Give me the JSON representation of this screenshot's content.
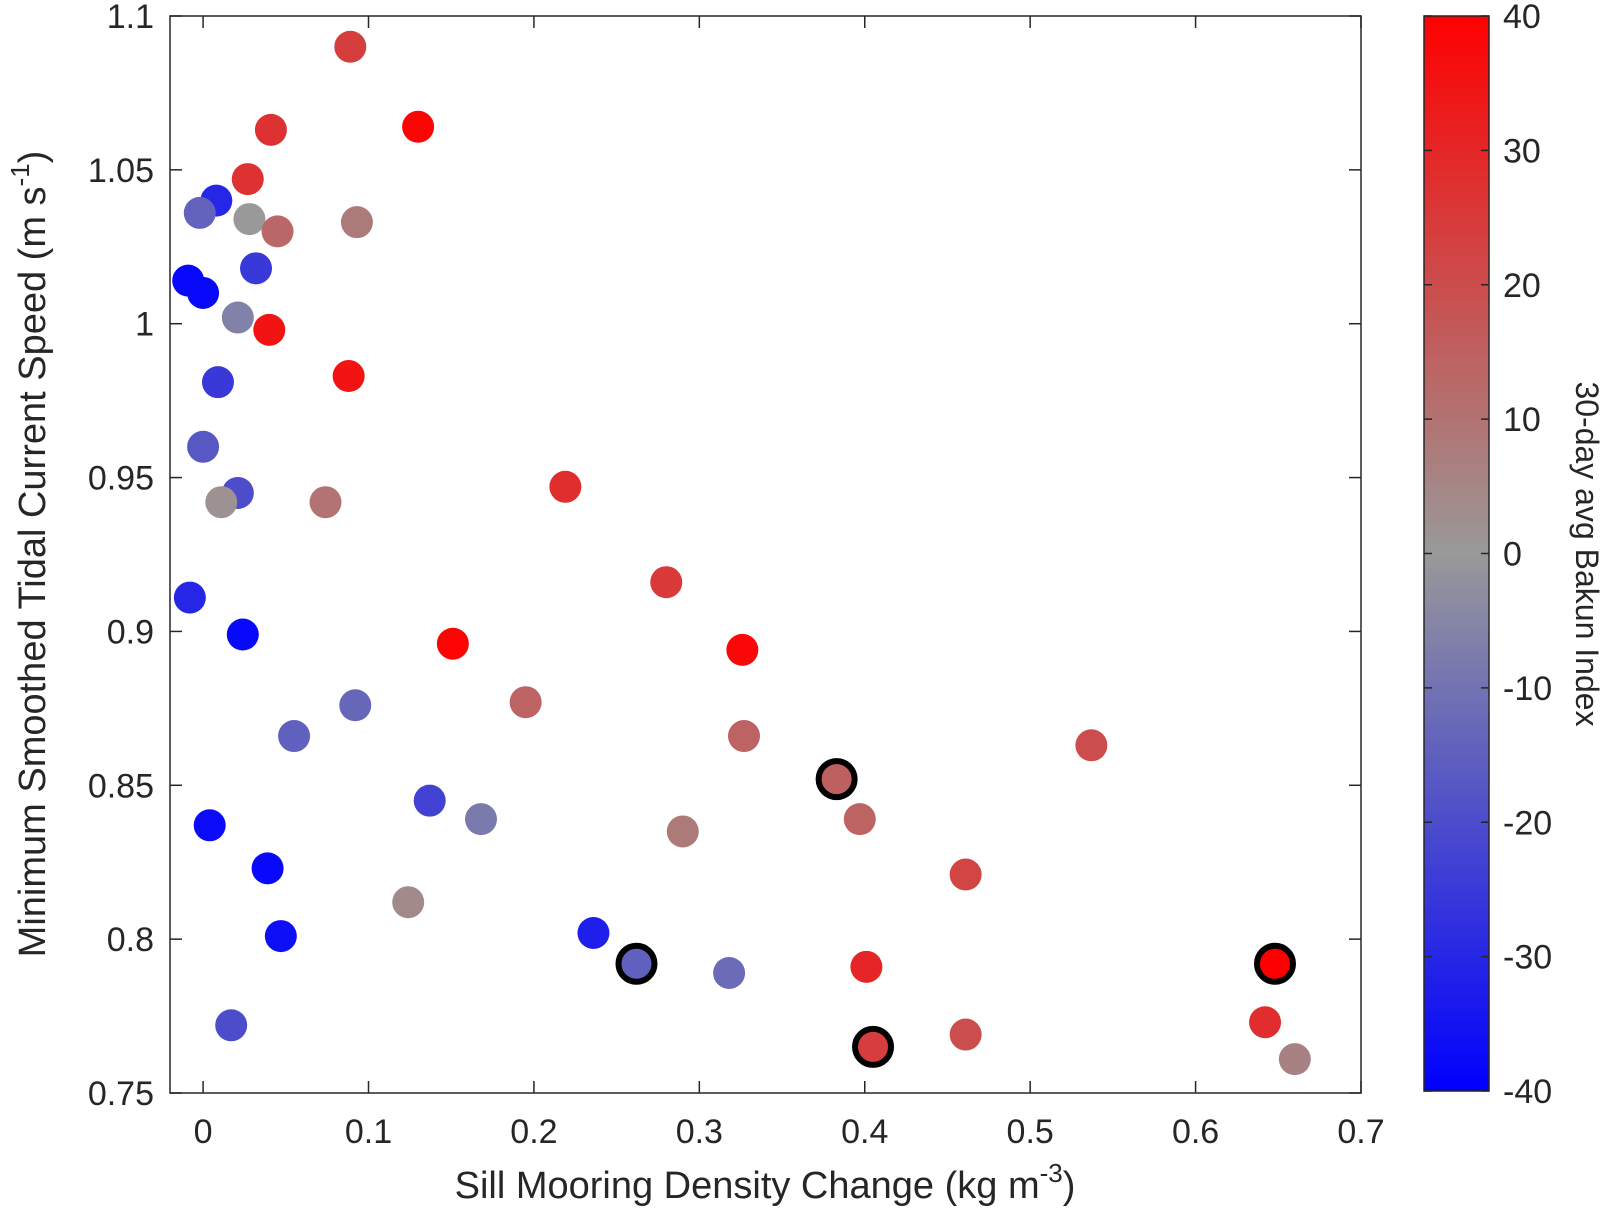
{
  "chart_data": {
    "type": "scatter",
    "title": "",
    "xlabel": "Sill Mooring Density Change (kg m",
    "xlabel_sup": "-3",
    "xlabel_close": ")",
    "ylabel": "Minimum Smoothed Tidal Current Speed (m s",
    "ylabel_sup": "-1",
    "ylabel_close": ")",
    "xlim": [
      -0.02,
      0.7
    ],
    "ylim": [
      0.75,
      1.1
    ],
    "xticks": [
      0,
      0.1,
      0.2,
      0.3,
      0.4,
      0.5,
      0.6,
      0.7
    ],
    "xtick_labels": [
      "0",
      "0.1",
      "0.2",
      "0.3",
      "0.4",
      "0.5",
      "0.6",
      "0.7"
    ],
    "yticks": [
      0.75,
      0.8,
      0.85,
      0.9,
      0.95,
      1.0,
      1.05,
      1.1
    ],
    "ytick_labels": [
      "0.75",
      "0.8",
      "0.85",
      "0.9",
      "0.95",
      "1",
      "1.05",
      "1.1"
    ],
    "grid": false,
    "colorbar": {
      "label": "30-day avg Bakun Index",
      "range": [
        -40,
        40
      ],
      "ticks": [
        40,
        30,
        20,
        10,
        0,
        -10,
        -20,
        -30,
        -40
      ],
      "tick_labels": [
        "40",
        "30",
        "20",
        "10",
        "0",
        "-10",
        "-20",
        "-30",
        "-40"
      ],
      "colormap": [
        "#0000ff",
        "#999999",
        "#ff0000"
      ]
    },
    "points": [
      {
        "x": 0.089,
        "y": 1.09,
        "c": 24
      },
      {
        "x": 0.13,
        "y": 1.064,
        "c": 39
      },
      {
        "x": 0.041,
        "y": 1.063,
        "c": 27
      },
      {
        "x": 0.027,
        "y": 1.047,
        "c": 27
      },
      {
        "x": 0.008,
        "y": 1.04,
        "c": -30
      },
      {
        "x": -0.002,
        "y": 1.036,
        "c": -14
      },
      {
        "x": 0.028,
        "y": 1.034,
        "c": 0
      },
      {
        "x": 0.045,
        "y": 1.03,
        "c": 13
      },
      {
        "x": 0.093,
        "y": 1.033,
        "c": 8
      },
      {
        "x": 0.032,
        "y": 1.018,
        "c": -25
      },
      {
        "x": -0.009,
        "y": 1.014,
        "c": -38
      },
      {
        "x": 0.0,
        "y": 1.01,
        "c": -38
      },
      {
        "x": 0.021,
        "y": 1.002,
        "c": -6
      },
      {
        "x": 0.04,
        "y": 0.998,
        "c": 35
      },
      {
        "x": 0.088,
        "y": 0.983,
        "c": 35
      },
      {
        "x": 0.009,
        "y": 0.981,
        "c": -25
      },
      {
        "x": 0.0,
        "y": 0.96,
        "c": -17
      },
      {
        "x": 0.021,
        "y": 0.945,
        "c": -20
      },
      {
        "x": 0.011,
        "y": 0.942,
        "c": 2
      },
      {
        "x": 0.074,
        "y": 0.942,
        "c": 10
      },
      {
        "x": 0.219,
        "y": 0.947,
        "c": 28
      },
      {
        "x": -0.008,
        "y": 0.911,
        "c": -30
      },
      {
        "x": 0.28,
        "y": 0.916,
        "c": 25
      },
      {
        "x": 0.024,
        "y": 0.899,
        "c": -38
      },
      {
        "x": 0.151,
        "y": 0.896,
        "c": 39
      },
      {
        "x": 0.326,
        "y": 0.894,
        "c": 38
      },
      {
        "x": 0.092,
        "y": 0.876,
        "c": -13
      },
      {
        "x": 0.195,
        "y": 0.877,
        "c": 14
      },
      {
        "x": 0.055,
        "y": 0.866,
        "c": -15
      },
      {
        "x": 0.327,
        "y": 0.866,
        "c": 14
      },
      {
        "x": 0.537,
        "y": 0.863,
        "c": 20
      },
      {
        "x": 0.383,
        "y": 0.852,
        "c": 15,
        "outlined": true
      },
      {
        "x": 0.137,
        "y": 0.845,
        "c": -23
      },
      {
        "x": 0.168,
        "y": 0.839,
        "c": -8
      },
      {
        "x": 0.397,
        "y": 0.839,
        "c": 14
      },
      {
        "x": 0.004,
        "y": 0.837,
        "c": -37
      },
      {
        "x": 0.29,
        "y": 0.835,
        "c": 8
      },
      {
        "x": 0.039,
        "y": 0.823,
        "c": -38
      },
      {
        "x": 0.461,
        "y": 0.821,
        "c": 22
      },
      {
        "x": 0.124,
        "y": 0.812,
        "c": 4
      },
      {
        "x": 0.047,
        "y": 0.801,
        "c": -36
      },
      {
        "x": 0.236,
        "y": 0.802,
        "c": -32
      },
      {
        "x": 0.262,
        "y": 0.792,
        "c": -15,
        "outlined": true
      },
      {
        "x": 0.401,
        "y": 0.791,
        "c": 30
      },
      {
        "x": 0.318,
        "y": 0.789,
        "c": -12
      },
      {
        "x": 0.648,
        "y": 0.792,
        "c": 40,
        "outlined": true
      },
      {
        "x": 0.017,
        "y": 0.772,
        "c": -20
      },
      {
        "x": 0.461,
        "y": 0.769,
        "c": 20
      },
      {
        "x": 0.405,
        "y": 0.765,
        "c": 24,
        "outlined": true
      },
      {
        "x": 0.642,
        "y": 0.773,
        "c": 28
      },
      {
        "x": 0.66,
        "y": 0.761,
        "c": 6
      }
    ]
  }
}
